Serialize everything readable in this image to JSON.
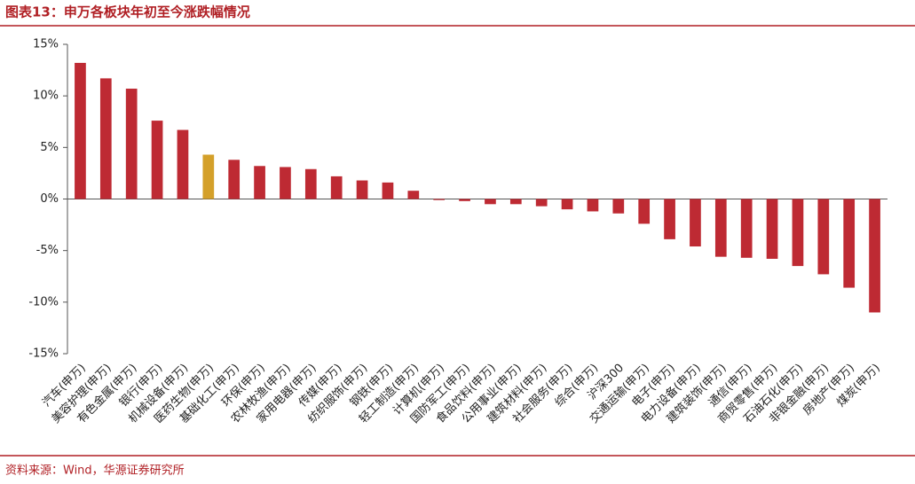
{
  "chart_data": {
    "type": "bar",
    "title": "图表13：申万各板块年初至今涨跌幅情况",
    "source": "资料来源：Wind，华源证券研究所",
    "categories": [
      "汽车(申万)",
      "美容护理(申万)",
      "有色金属(申万)",
      "银行(申万)",
      "机械设备(申万)",
      "医药生物(申万)",
      "基础化工(申万)",
      "环保(申万)",
      "农林牧渔(申万)",
      "家用电器(申万)",
      "传媒(申万)",
      "纺织服饰(申万)",
      "钢铁(申万)",
      "轻工制造(申万)",
      "计算机(申万)",
      "国防军工(申万)",
      "食品饮料(申万)",
      "公用事业(申万)",
      "建筑材料(申万)",
      "社会服务(申万)",
      "综合(申万)",
      "沪深300",
      "交通运输(申万)",
      "电子(申万)",
      "电力设备(申万)",
      "建筑装饰(申万)",
      "通信(申万)",
      "商贸零售(申万)",
      "石油石化(申万)",
      "非银金融(申万)",
      "房地产(申万)",
      "煤炭(申万)"
    ],
    "values": [
      13.2,
      11.7,
      10.7,
      7.6,
      6.7,
      4.3,
      3.8,
      3.2,
      3.1,
      2.9,
      2.2,
      1.8,
      1.6,
      0.8,
      -0.1,
      -0.2,
      -0.5,
      -0.5,
      -0.7,
      -1.0,
      -1.2,
      -1.4,
      -2.4,
      -3.9,
      -4.6,
      -5.6,
      -5.7,
      -5.8,
      -6.5,
      -7.3,
      -8.6,
      -11.0
    ],
    "colors": [
      "#be2a33",
      "#be2a33",
      "#be2a33",
      "#be2a33",
      "#be2a33",
      "#d4a02a",
      "#be2a33",
      "#be2a33",
      "#be2a33",
      "#be2a33",
      "#be2a33",
      "#be2a33",
      "#be2a33",
      "#be2a33",
      "#be2a33",
      "#be2a33",
      "#be2a33",
      "#be2a33",
      "#be2a33",
      "#be2a33",
      "#be2a33",
      "#be2a33",
      "#be2a33",
      "#be2a33",
      "#be2a33",
      "#be2a33",
      "#be2a33",
      "#be2a33",
      "#be2a33",
      "#be2a33",
      "#be2a33",
      "#be2a33"
    ],
    "ylim": [
      -15,
      15
    ],
    "yticks": [
      {
        "value": -15,
        "label": "-15%"
      },
      {
        "value": -10,
        "label": "-10%"
      },
      {
        "value": -5,
        "label": "-5%"
      },
      {
        "value": 0,
        "label": "0%"
      },
      {
        "value": 5,
        "label": "5%"
      },
      {
        "value": 10,
        "label": "10%"
      },
      {
        "value": 15,
        "label": "15%"
      }
    ]
  }
}
